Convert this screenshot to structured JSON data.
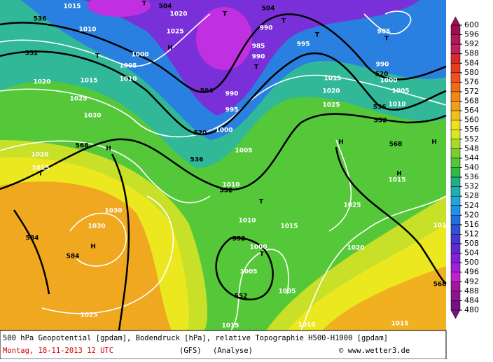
{
  "caption": {
    "line1": "500 hPa Geopotential [gpdam], Bodendruck [hPa], relative Topographie H500-H1000 [gpdam]",
    "date": "Montag, 18-11-2013  12 UTC",
    "model": "(GFS)",
    "run": "(Analyse)",
    "source": "© www.wetter3.de"
  },
  "colorbar": {
    "ticks": [
      600,
      596,
      592,
      588,
      584,
      580,
      576,
      572,
      568,
      564,
      560,
      556,
      552,
      548,
      544,
      540,
      536,
      532,
      528,
      524,
      520,
      516,
      512,
      508,
      504,
      500,
      496,
      492,
      488,
      484,
      480
    ],
    "colors": [
      "#9c1050",
      "#b0185a",
      "#c02060",
      "#d82828",
      "#e83c20",
      "#f05020",
      "#f06a18",
      "#f08818",
      "#f0a018",
      "#f0c020",
      "#f0e020",
      "#d8e820",
      "#a8dc28",
      "#78d030",
      "#50c838",
      "#30b848",
      "#20b088",
      "#20b0b0",
      "#20a8d8",
      "#2090e8",
      "#2070e0",
      "#3050d8",
      "#4838d0",
      "#6428d0",
      "#8420d8",
      "#a020d8",
      "#c020d0",
      "#a0189c",
      "#8c1490",
      "#7a1080"
    ]
  },
  "map_labels": [
    "536",
    "1015",
    "504",
    "1020",
    "T",
    "T",
    "504",
    "T",
    "990",
    "T",
    "985",
    "T",
    "552",
    "1010",
    "1025",
    "H",
    "985",
    "995",
    "T",
    "1000",
    "1005",
    "1010",
    "990",
    "T",
    "520",
    "990",
    "1020",
    "1015",
    "504",
    "990",
    "1015",
    "1000",
    "1005",
    "1020",
    "1025",
    "995",
    "1025",
    "536",
    "1010",
    "1030",
    "552",
    "1000",
    "520",
    "H",
    "568",
    "H",
    "568",
    "H",
    "1005",
    "1020",
    "536",
    "1015",
    "T",
    "H",
    "1015",
    "1010",
    "552",
    "T",
    "1025",
    "1030",
    "1010",
    "1015",
    "1030",
    "584",
    "552",
    "1000",
    "T",
    "H",
    "1020",
    "584",
    "1005",
    "568",
    "1005",
    "552",
    "1025",
    "1015",
    "1010",
    "1015",
    "101"
  ]
}
